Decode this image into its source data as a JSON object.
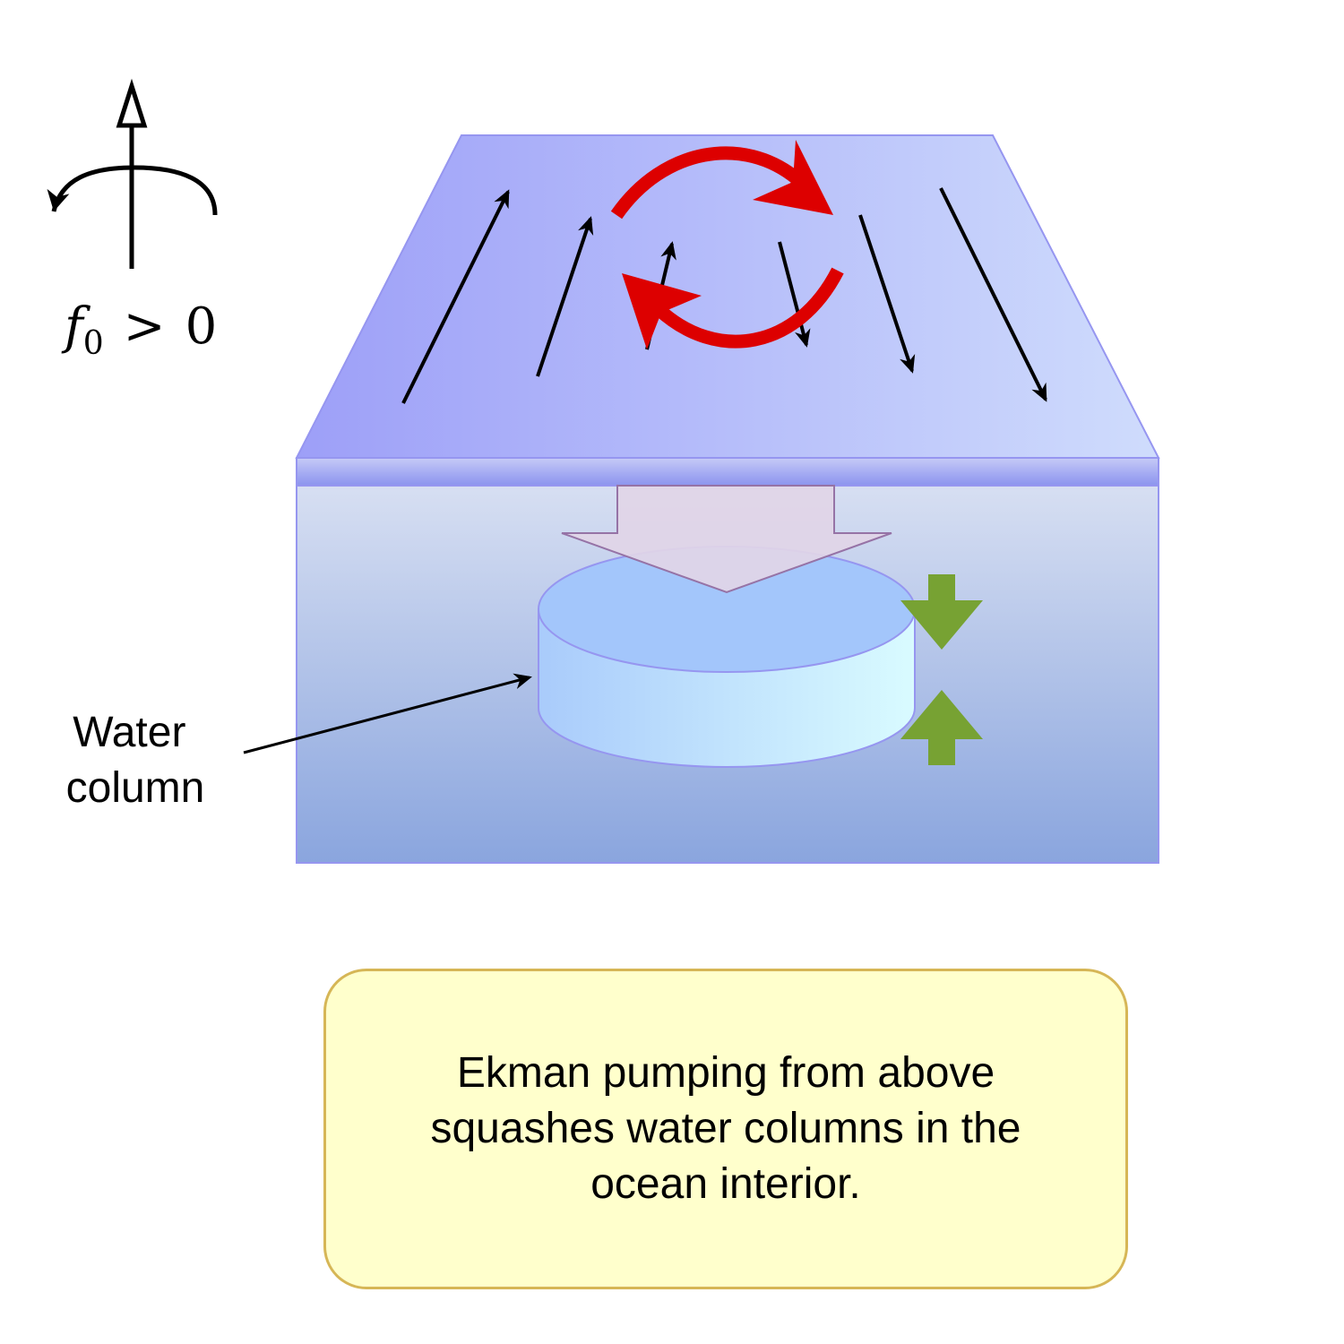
{
  "rotation_indicator": {
    "symbol": "f",
    "subscript": "0",
    "relation": ">",
    "value": "0"
  },
  "water_column_label": {
    "line1": "Water",
    "line2": "column"
  },
  "caption": "Ekman pumping from above squashes water columns in the ocean interior.",
  "colors": {
    "surface_left": "#9d9ff8",
    "surface_right": "#cfdcfc",
    "ocean_top": "#d7dff2",
    "ocean_bottom": "#8aa5de",
    "eddy_arrow": "#dd0000",
    "pumping_arrow": "#e1d5e7",
    "compression_arrows": "#77a233",
    "caption_fill": "#ffffcc",
    "caption_border": "#d6b656"
  }
}
